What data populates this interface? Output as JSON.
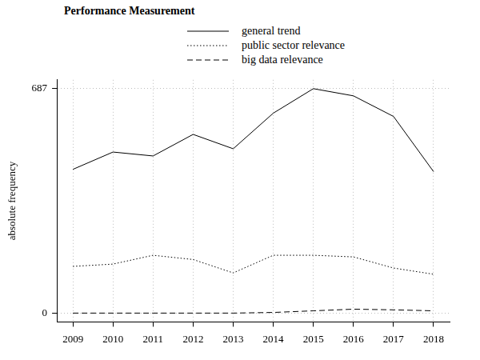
{
  "chart_data": {
    "type": "line",
    "title": "Performance Measurement",
    "y_label": "absolute frequency",
    "x": [
      2009,
      2010,
      2011,
      2012,
      2013,
      2014,
      2015,
      2016,
      2017,
      2018
    ],
    "series": [
      {
        "name": "general trend",
        "color": "#000000",
        "line_style": "solid",
        "values": [
          440,
          493,
          481,
          547,
          503,
          612,
          687,
          665,
          602,
          433
        ]
      },
      {
        "name": "public sector relevance",
        "color": "#000000",
        "line_style": "dotted",
        "values": [
          143,
          150,
          177,
          164,
          123,
          177,
          177,
          172,
          138,
          119
        ]
      },
      {
        "name": "big data relevance",
        "color": "#000000",
        "line_style": "dashed",
        "values": [
          0,
          0,
          0,
          0,
          0,
          2,
          7,
          12,
          10,
          7
        ]
      }
    ],
    "xlim": [
      2008.6,
      2018.4
    ],
    "xticks": [
      2009,
      2010,
      2011,
      2012,
      2013,
      2014,
      2015,
      2016,
      2017,
      2018
    ],
    "ylim": [
      -27,
      714
    ],
    "yticks": [
      0,
      687
    ],
    "grid": true,
    "legend": "top"
  }
}
